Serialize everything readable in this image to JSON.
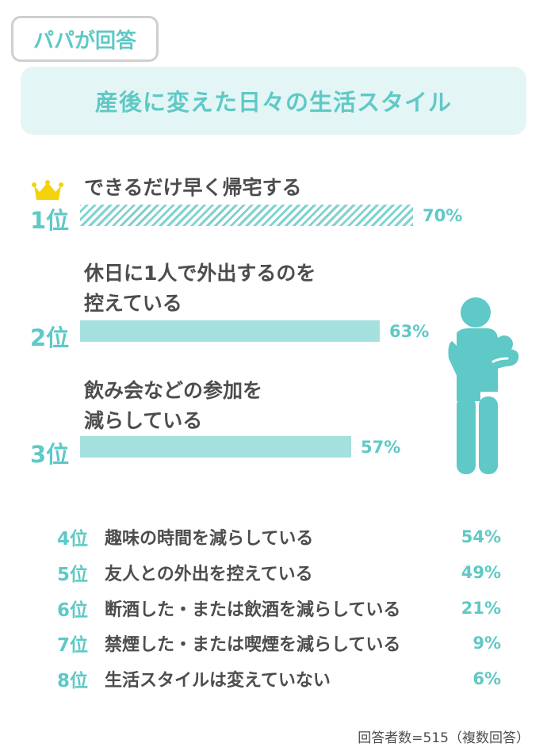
{
  "tag": "パパが回答",
  "title": "産後に変えた日々の生活スタイル",
  "footnote": "回答者数=515（複数回答）",
  "colors": {
    "accent": "#5ec9c6",
    "bar": "#a4e0de",
    "banner": "#e4f5f5",
    "crown": "#f5d20a",
    "text": "#4d4d4d"
  },
  "icons": [
    "crown-icon",
    "father-with-baby-icon"
  ],
  "chart_data": {
    "type": "bar",
    "orientation": "horizontal",
    "unit": "%",
    "top3": [
      {
        "rank": "1位",
        "label_lines": [
          "できるだけ早く帰宅する"
        ],
        "value": 70,
        "value_label": "70%",
        "style": "hatched"
      },
      {
        "rank": "2位",
        "label_lines": [
          "休日に1人で外出するのを",
          "控えている"
        ],
        "value": 63,
        "value_label": "63%",
        "style": "solid"
      },
      {
        "rank": "3位",
        "label_lines": [
          "飲み会などの参加を",
          "減らしている"
        ],
        "value": 57,
        "value_label": "57%",
        "style": "solid"
      }
    ],
    "rest": [
      {
        "rank": "4位",
        "label": "趣味の時間を減らしている",
        "value": 54,
        "value_label": "54%"
      },
      {
        "rank": "5位",
        "label": "友人との外出を控えている",
        "value": 49,
        "value_label": "49%"
      },
      {
        "rank": "6位",
        "label": "断酒した・または飲酒を減らしている",
        "value": 21,
        "value_label": "21%"
      },
      {
        "rank": "7位",
        "label": "禁煙した・または喫煙を減らしている",
        "value": 9,
        "value_label": "9%"
      },
      {
        "rank": "8位",
        "label": "生活スタイルは変えていない",
        "value": 6,
        "value_label": "6%"
      }
    ]
  }
}
